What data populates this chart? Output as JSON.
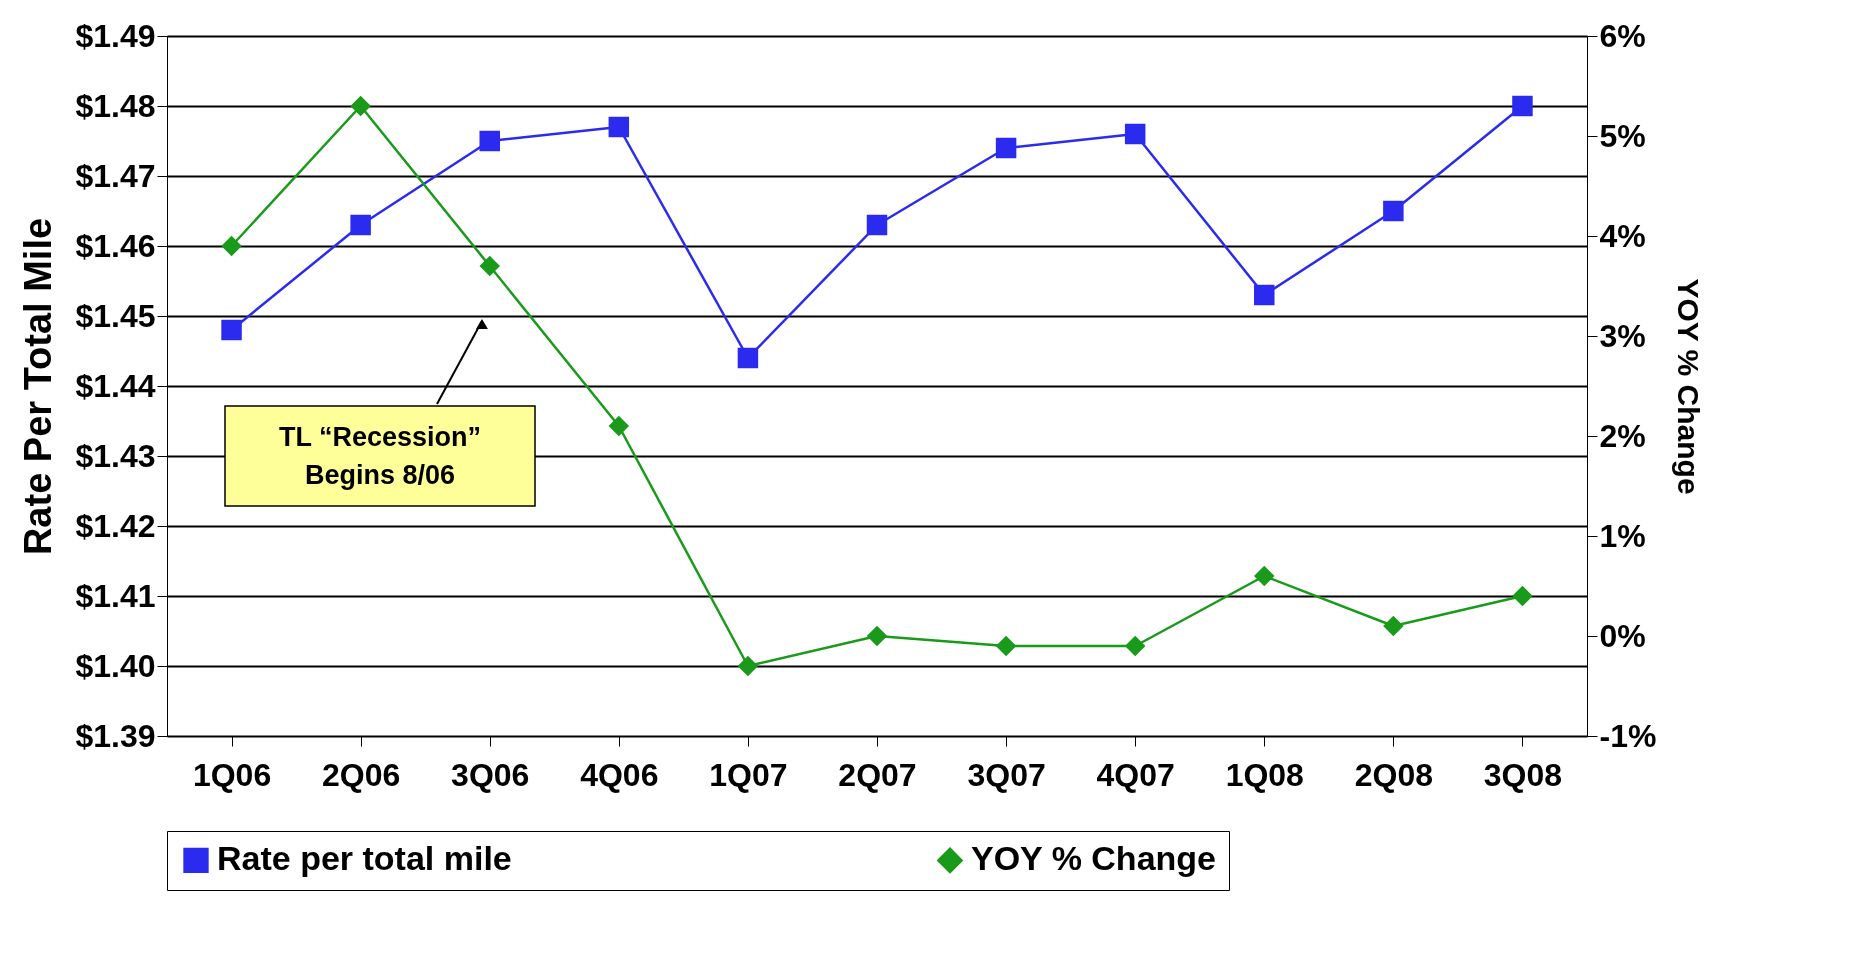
{
  "chart_data": {
    "type": "line",
    "categories": [
      "1Q06",
      "2Q06",
      "3Q06",
      "4Q06",
      "1Q07",
      "2Q07",
      "3Q07",
      "4Q07",
      "1Q08",
      "2Q08",
      "3Q08"
    ],
    "ylabel": "Rate Per Total Mile",
    "y2label": "YOY % Change",
    "series": [
      {
        "name": "Rate per total mile",
        "color": "#2b2bf0",
        "marker": "square",
        "values": [
          1.448,
          1.463,
          1.475,
          1.477,
          1.444,
          1.463,
          1.474,
          1.476,
          1.453,
          1.465,
          1.48
        ]
      },
      {
        "name": "YOY % Change",
        "color": "#1a9a1a",
        "marker": "diamond",
        "axis": "y2",
        "values": [
          3.9,
          5.3,
          3.7,
          2.1,
          -0.3,
          0.0,
          -0.1,
          -0.1,
          0.6,
          0.1,
          0.4
        ]
      }
    ],
    "ylim": [
      1.39,
      1.49
    ],
    "yticks": [
      {
        "value": 1.39,
        "label": "$1.39"
      },
      {
        "value": 1.4,
        "label": "$1.40"
      },
      {
        "value": 1.41,
        "label": "$1.41"
      },
      {
        "value": 1.42,
        "label": "$1.42"
      },
      {
        "value": 1.43,
        "label": "$1.43"
      },
      {
        "value": 1.44,
        "label": "$1.44"
      },
      {
        "value": 1.45,
        "label": "$1.45"
      },
      {
        "value": 1.46,
        "label": "$1.46"
      },
      {
        "value": 1.47,
        "label": "$1.47"
      },
      {
        "value": 1.48,
        "label": "$1.48"
      },
      {
        "value": 1.49,
        "label": "$1.49"
      }
    ],
    "y2lim": [
      -1,
      6
    ],
    "y2ticks": [
      {
        "value": -1,
        "label": "-1%"
      },
      {
        "value": 0,
        "label": "0%"
      },
      {
        "value": 1,
        "label": "1%"
      },
      {
        "value": 2,
        "label": "2%"
      },
      {
        "value": 3,
        "label": "3%"
      },
      {
        "value": 4,
        "label": "4%"
      },
      {
        "value": 5,
        "label": "5%"
      },
      {
        "value": 6,
        "label": "6%"
      }
    ],
    "annotations": [
      "TL “Recession”\nBegins 8/06"
    ],
    "grid": "y",
    "legend": "bottom",
    "line_style": "solid"
  }
}
